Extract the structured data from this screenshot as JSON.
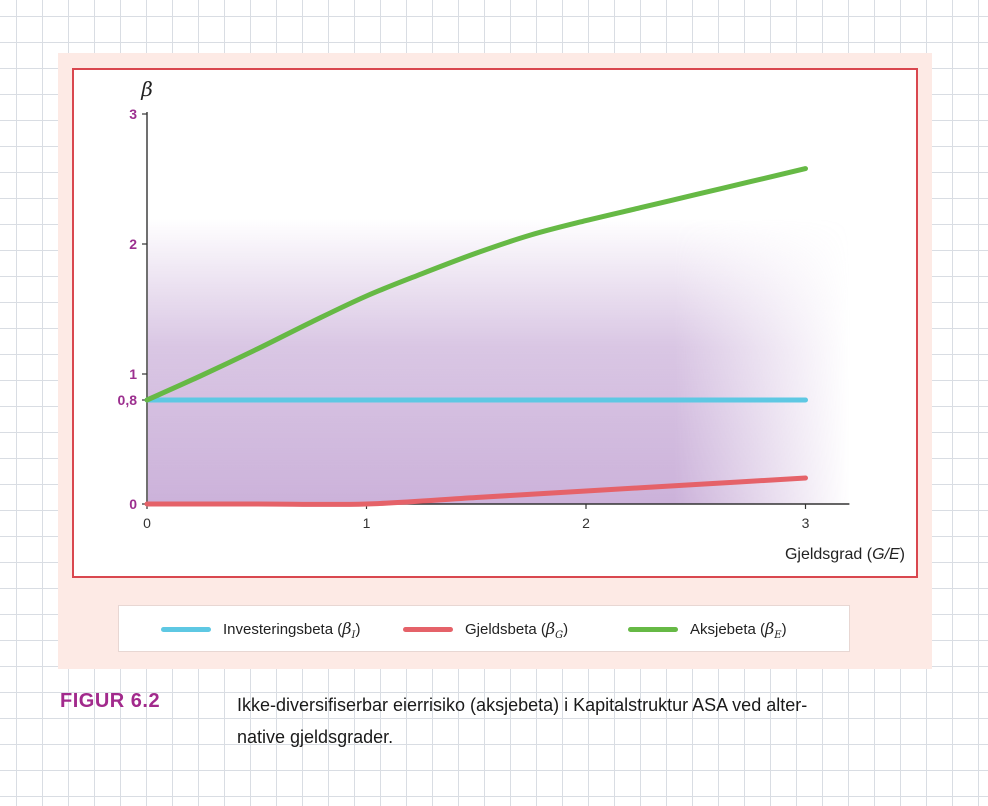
{
  "colors": {
    "investeringsbeta": "#5ec8e3",
    "gjeldsbeta": "#e56269",
    "aksjebeta": "#66b945",
    "axis_tick_labels_y": "#9c2f8f",
    "frame": "#d9474f",
    "panel": "#fdeae5",
    "shading": "#c9aed8"
  },
  "chart_data": {
    "type": "line",
    "title": "",
    "ylabel": "β",
    "xlabel": "Gjeldsgrad (G/E)",
    "xlabel_parts": {
      "text": "Gjeldsgrad (",
      "var": "G/E",
      "close": ")"
    },
    "xlim": [
      0,
      3.2
    ],
    "ylim": [
      0,
      3
    ],
    "x_ticks": [
      "0",
      "1",
      "2",
      "3"
    ],
    "y_ticks": [
      {
        "value": 0,
        "label": "0"
      },
      {
        "value": 0.8,
        "label": "0,8"
      },
      {
        "value": 1,
        "label": "1"
      },
      {
        "value": 2,
        "label": "2"
      },
      {
        "value": 3,
        "label": "3"
      }
    ],
    "grid": false,
    "legend": "bottom",
    "series": [
      {
        "name": "Investeringsbeta (β_I)",
        "legend_text": "Investeringsbeta",
        "legend_sub": "I",
        "color": "#5ec8e3",
        "x": [
          0,
          3
        ],
        "y": [
          0.8,
          0.8
        ]
      },
      {
        "name": "Gjeldsbeta (β_G)",
        "legend_text": "Gjeldsbeta",
        "legend_sub": "G",
        "color": "#e56269",
        "x": [
          0,
          0.5,
          1,
          1.5,
          2,
          2.5,
          3
        ],
        "y": [
          0,
          0,
          0,
          0.05,
          0.1,
          0.15,
          0.2
        ]
      },
      {
        "name": "Aksjebeta (β_E)",
        "legend_text": "Aksjebeta",
        "legend_sub": "E",
        "color": "#66b945",
        "x": [
          0,
          0.25,
          0.5,
          0.75,
          1,
          1.25,
          1.5,
          1.75,
          2,
          2.25,
          2.5,
          2.75,
          3
        ],
        "y": [
          0.8,
          0.99,
          1.19,
          1.4,
          1.6,
          1.77,
          1.93,
          2.07,
          2.18,
          2.28,
          2.38,
          2.48,
          2.58
        ]
      }
    ]
  },
  "figure": {
    "label": "FIGUR 6.2",
    "caption_line1": "Ikke-diversifiserbar eierrisiko (aksjebeta) i Kapitalstruktur ASA ved alter-",
    "caption_line2": "native gjeldsgrader."
  }
}
